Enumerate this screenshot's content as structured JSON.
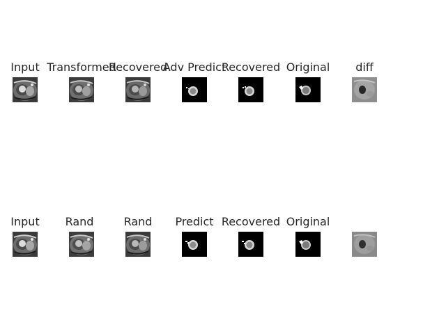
{
  "rows": [
    {
      "panels": [
        {
          "title": "Input",
          "kind": "mri"
        },
        {
          "title": "Transformed",
          "kind": "mri"
        },
        {
          "title": "Recovered",
          "kind": "mri"
        },
        {
          "title": "Adv Predict",
          "kind": "mask"
        },
        {
          "title": "Recovered",
          "kind": "mask"
        },
        {
          "title": "Original",
          "kind": "mask"
        },
        {
          "title": "diff",
          "kind": "diff"
        }
      ]
    },
    {
      "panels": [
        {
          "title": "Input",
          "kind": "mri"
        },
        {
          "title": "Rand",
          "kind": "mri"
        },
        {
          "title": "Rand",
          "kind": "mri"
        },
        {
          "title": "Predict",
          "kind": "mask"
        },
        {
          "title": "Recovered",
          "kind": "mask"
        },
        {
          "title": "Original",
          "kind": "mask"
        },
        {
          "title": "",
          "kind": "diff"
        }
      ]
    }
  ]
}
